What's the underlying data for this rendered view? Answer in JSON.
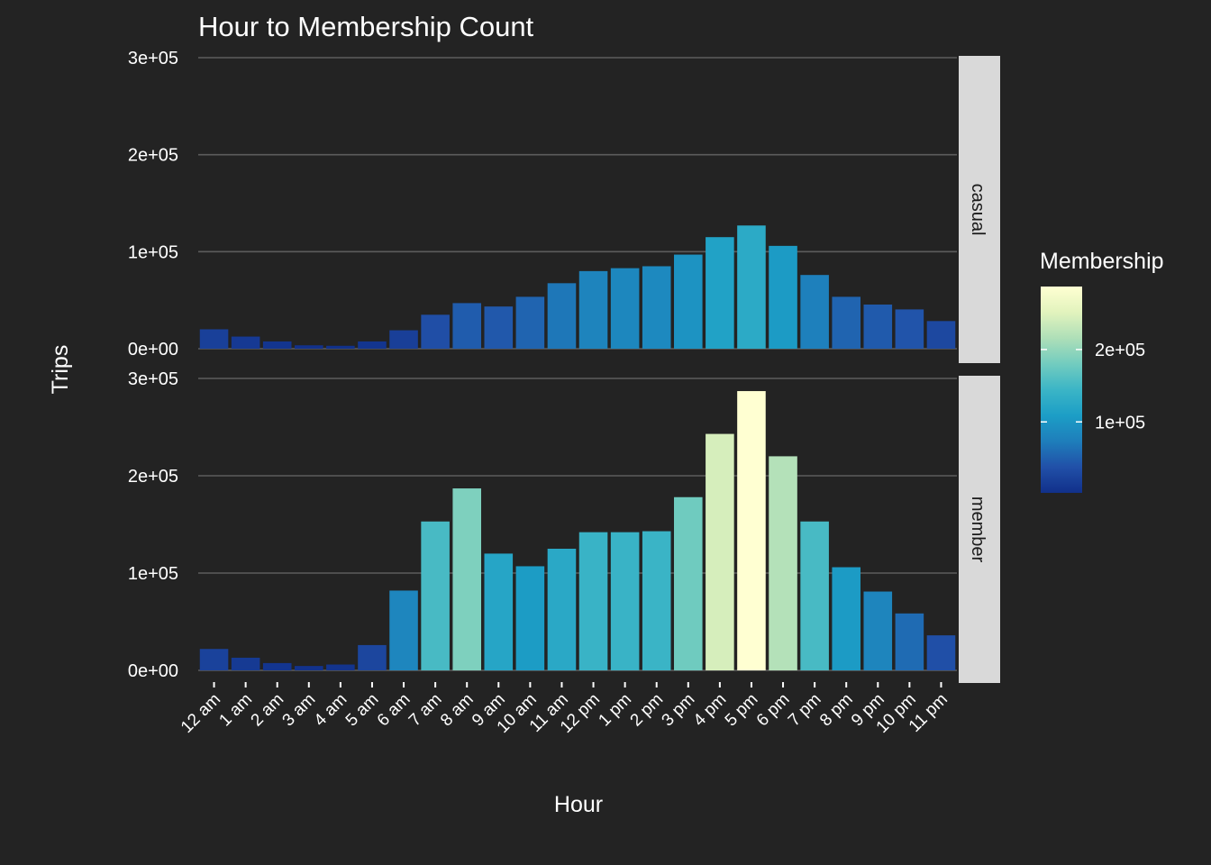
{
  "chart_data": {
    "type": "bar",
    "title": "Hour to Membership Count",
    "xlabel": "Hour",
    "ylabel": "Trips",
    "ylim": [
      0,
      300000
    ],
    "yticks": [
      0,
      100000,
      200000,
      300000
    ],
    "ytick_labels": [
      "0e+00",
      "1e+05",
      "2e+05",
      "3e+05"
    ],
    "categories": [
      "12 am",
      "1 am",
      "2 am",
      "3 am",
      "4 am",
      "5 am",
      "6 am",
      "7 am",
      "8 am",
      "9 am",
      "10 am",
      "11 am",
      "12 pm",
      "1 pm",
      "2 pm",
      "3 pm",
      "4 pm",
      "5 pm",
      "6 pm",
      "7 pm",
      "8 pm",
      "9 pm",
      "10 pm",
      "11 pm"
    ],
    "facets": [
      {
        "label": "casual",
        "values": [
          20000,
          12500,
          7500,
          3500,
          3000,
          7500,
          19000,
          35000,
          47000,
          43500,
          53500,
          67500,
          80000,
          83000,
          85000,
          97000,
          115000,
          127000,
          106000,
          76000,
          53500,
          45500,
          40500,
          28500
        ]
      },
      {
        "label": "member",
        "values": [
          22000,
          13000,
          7500,
          4500,
          6000,
          26000,
          82000,
          153000,
          187000,
          120000,
          107000,
          125000,
          142000,
          142000,
          143000,
          178000,
          243000,
          287000,
          220000,
          153000,
          106000,
          81000,
          58500,
          36000
        ]
      }
    ],
    "grid": true,
    "legend": {
      "title": "Membership",
      "position": "right",
      "range": [
        2000,
        287000
      ],
      "ticks": [
        100000,
        200000
      ],
      "tick_labels": [
        "1e+05",
        "2e+05"
      ],
      "colors": [
        "#11308A",
        "#2150A8",
        "#1E7EBB",
        "#1C9EC6",
        "#3BB5C6",
        "#72CCBF",
        "#AEDFB8",
        "#E2F3BD",
        "#FFFFD2"
      ]
    }
  }
}
